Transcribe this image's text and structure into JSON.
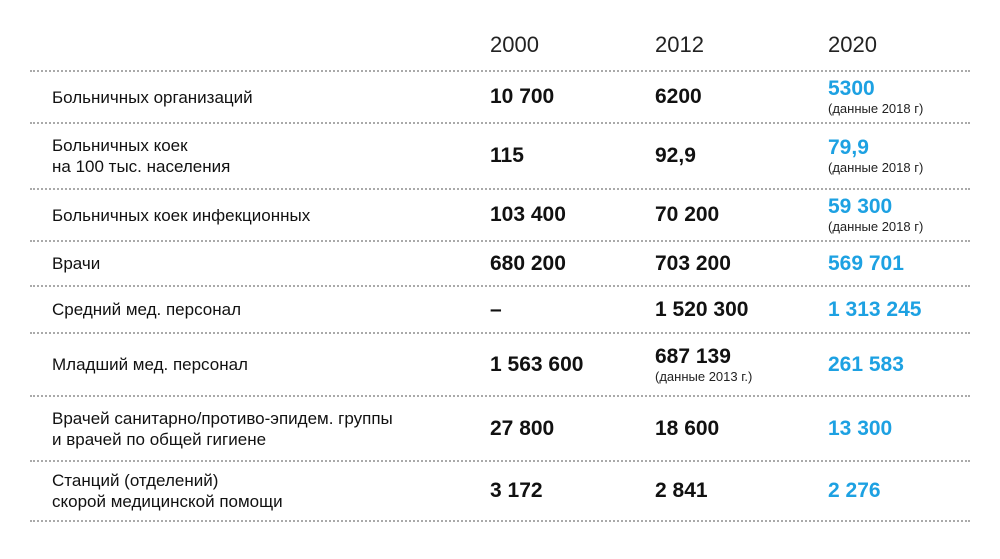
{
  "header": {
    "columns": [
      "2000",
      "2012",
      "2020"
    ]
  },
  "rows": [
    {
      "label": [
        "Больничных организаций"
      ],
      "values": [
        "10 700",
        "6200",
        "5300"
      ],
      "notes": {
        "2": "(данные 2018 г)"
      }
    },
    {
      "label": [
        "Больничных коек",
        "на 100 тыс. населения"
      ],
      "values": [
        "115",
        "92,9",
        "79,9"
      ],
      "notes": {
        "2": "(данные 2018 г)"
      }
    },
    {
      "label": [
        "Больничных коек инфекционных"
      ],
      "values": [
        "103 400",
        "70 200",
        "59 300"
      ],
      "notes": {
        "2": "(данные 2018 г)"
      }
    },
    {
      "label": [
        "Врачи"
      ],
      "values": [
        "680 200",
        "703 200",
        "569 701"
      ]
    },
    {
      "label": [
        "Средний мед. персонал"
      ],
      "values": [
        "–",
        "1 520 300",
        "1 313 245"
      ]
    },
    {
      "label": [
        "Младший мед. персонал"
      ],
      "values": [
        "1 563 600",
        "687 139",
        "261 583"
      ],
      "notes": {
        "1": "(данные 2013 г.)"
      }
    },
    {
      "label": [
        "Врачей санитарно/противо-эпидем. группы",
        "и врачей по общей гигиене"
      ],
      "values": [
        "27 800",
        "18 600",
        "13 300"
      ]
    },
    {
      "label": [
        "Станций (отделений)",
        "скорой медицинской помощи"
      ],
      "values": [
        "3 172",
        "2 841",
        "2 276"
      ]
    }
  ]
}
